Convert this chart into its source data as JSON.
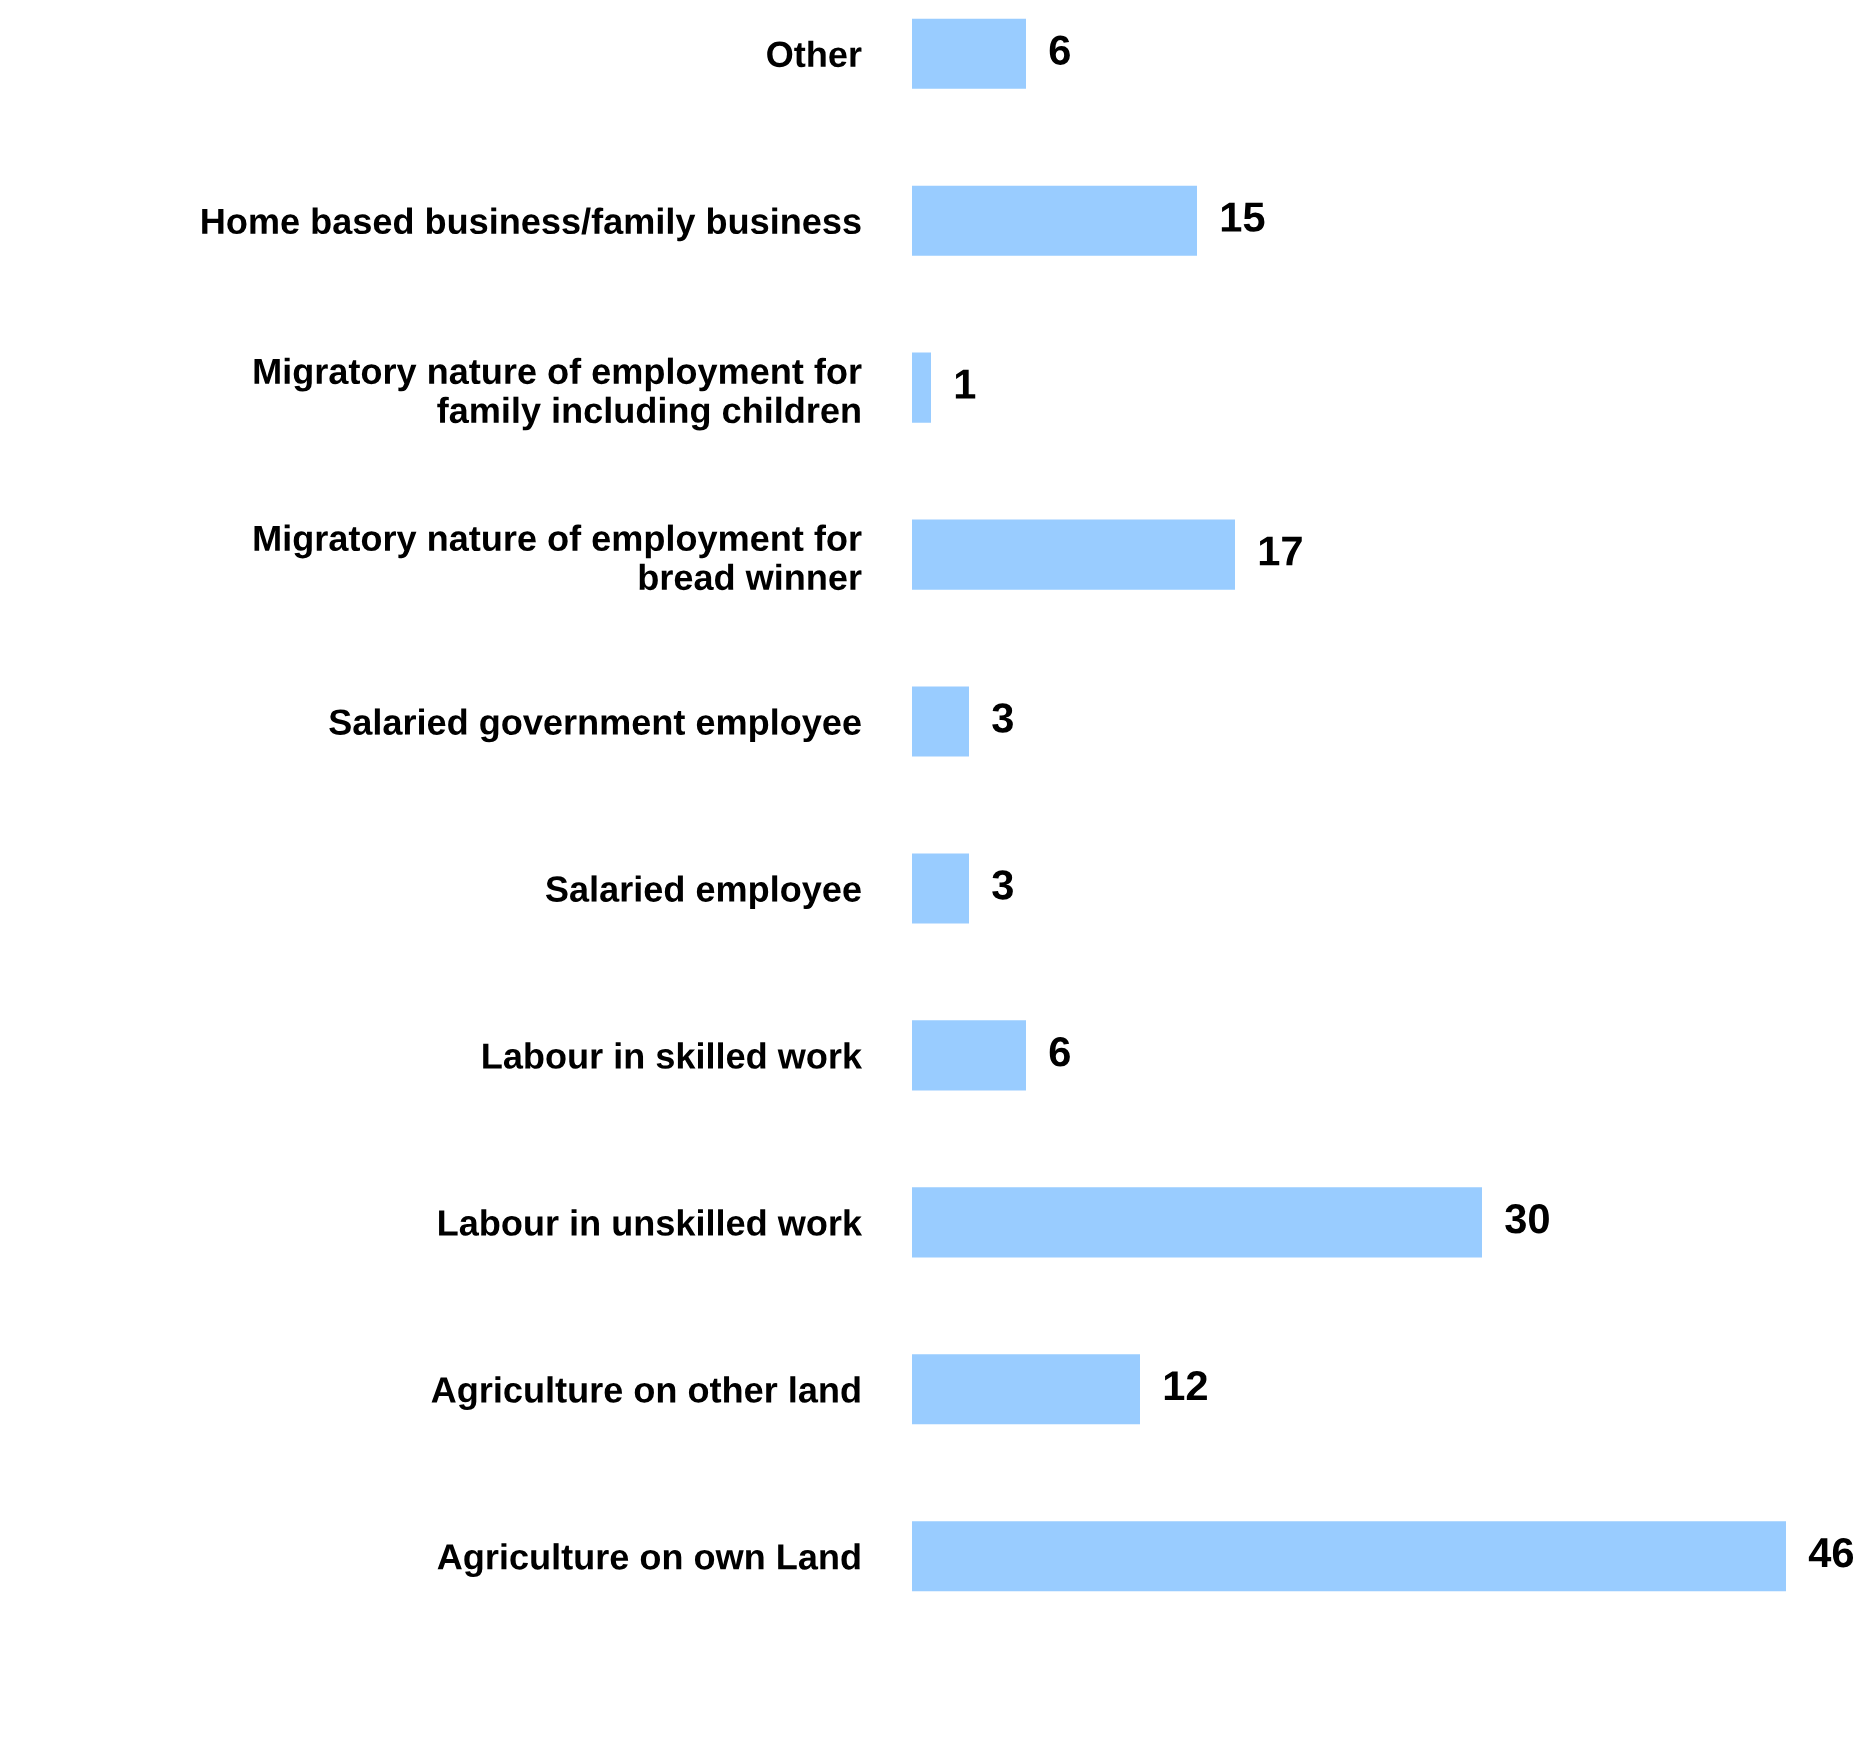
{
  "chart_data": {
    "type": "bar",
    "orientation": "horizontal",
    "data_labels": true,
    "grid": false,
    "legend": false,
    "tick_labels": "y",
    "color": "#99ccff",
    "categories": [
      "Other",
      "Home based business/family business",
      "Migratory nature of employment for\nfamily including children",
      "Migratory nature of employment for\nbread winner",
      "Salaried government employee",
      "Salaried employee",
      "Labour in skilled work",
      "Labour in unskilled work",
      "Agriculture on other land",
      "Agriculture on own Land"
    ],
    "values": [
      6,
      15,
      1,
      17,
      3,
      3,
      6,
      30,
      12,
      46
    ]
  }
}
